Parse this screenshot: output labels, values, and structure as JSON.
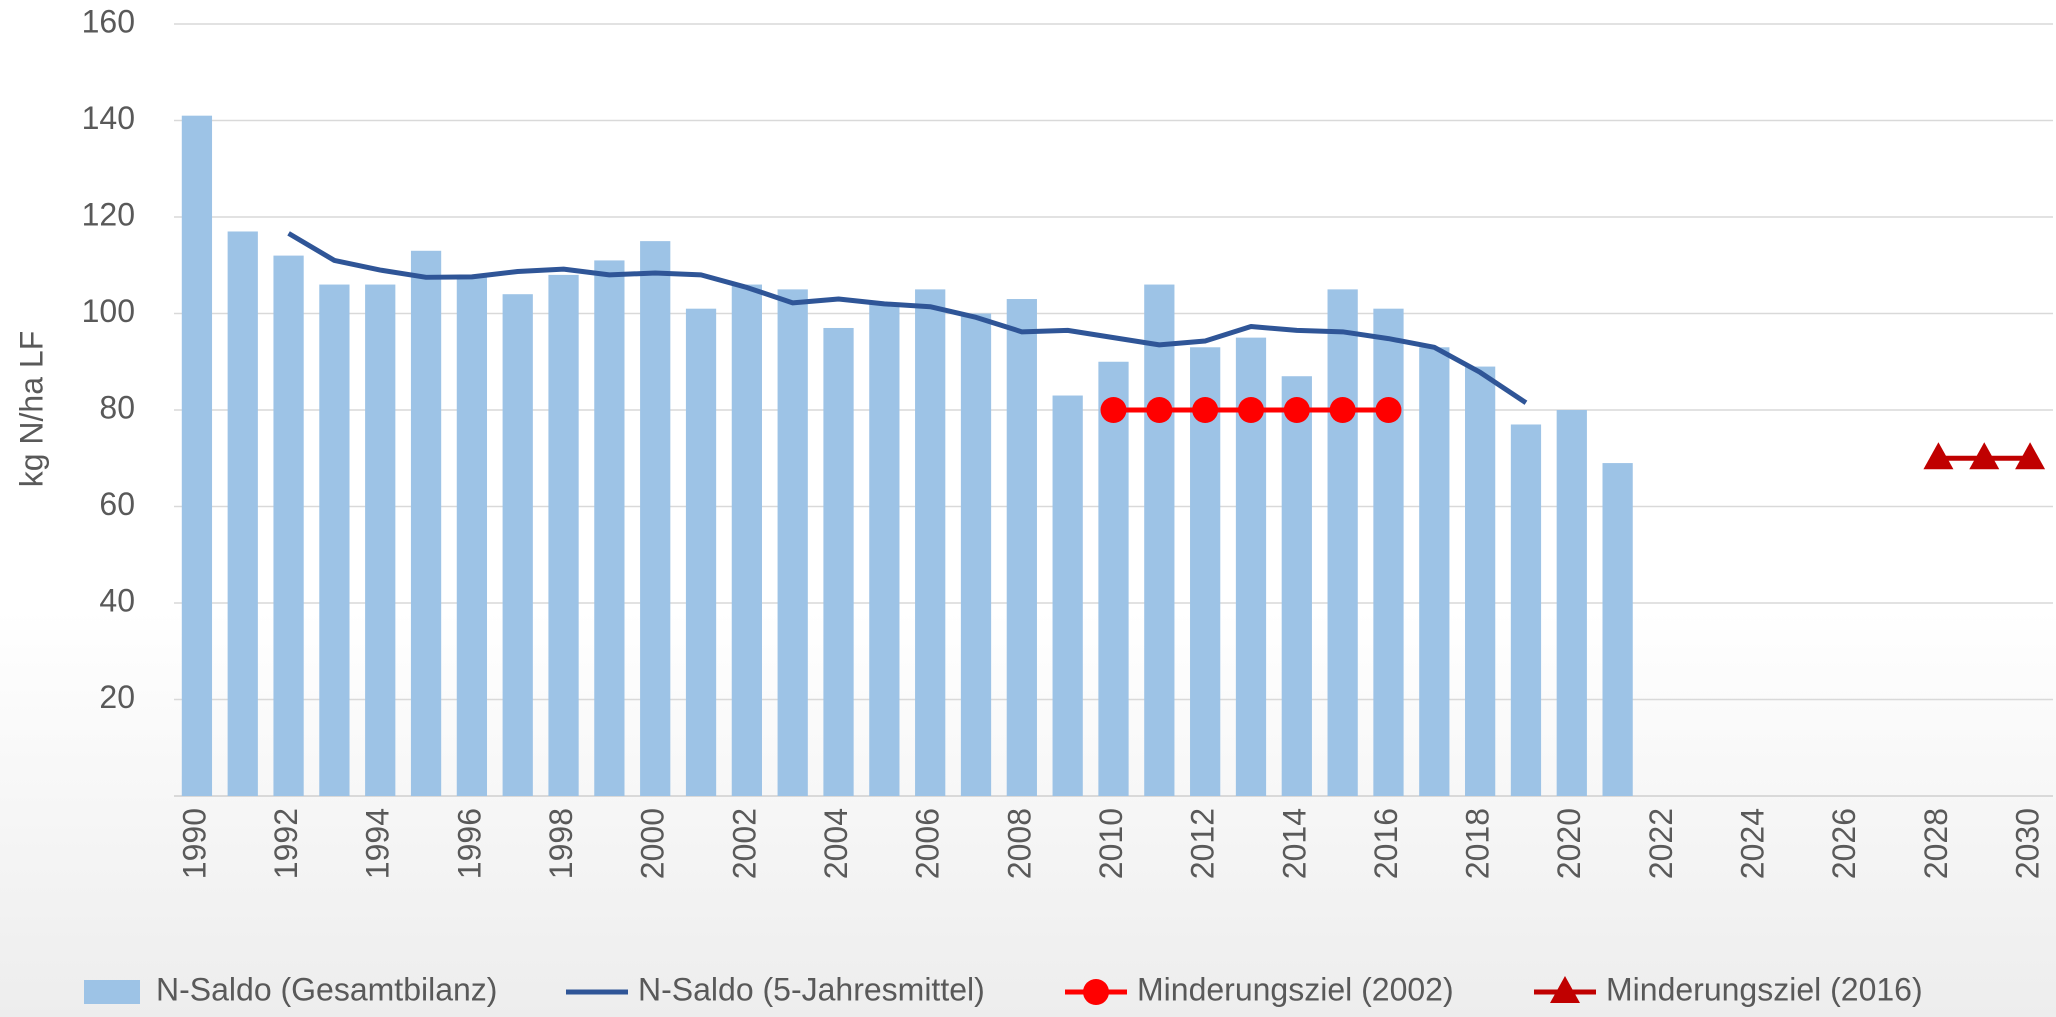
{
  "chart_data": {
    "type": "bar",
    "ylabel": "kg N/ha LF",
    "categories": [
      "1990",
      null,
      "1992",
      null,
      "1994",
      null,
      "1996",
      null,
      "1998",
      null,
      "2000",
      null,
      "2002",
      null,
      "2004",
      null,
      "2006",
      null,
      "2008",
      null,
      "2010",
      null,
      "2012",
      null,
      "2014",
      null,
      "2016",
      null,
      "2018",
      null,
      "2020",
      null,
      "2022",
      null,
      "2024",
      null,
      "2026",
      null,
      "2028",
      null,
      "2030"
    ],
    "series": [
      {
        "name": "N-Saldo (Gesamtbilanz)",
        "type": "bar",
        "color": "#9dc3e6",
        "values": [
          141,
          117,
          112,
          106,
          106,
          113,
          108,
          104,
          108,
          111,
          115,
          101,
          106,
          105,
          97,
          102,
          105,
          100,
          103,
          83,
          90,
          106,
          93,
          95,
          87,
          105,
          101,
          93,
          89,
          77,
          80,
          69,
          null,
          null,
          null,
          null,
          null,
          null,
          null,
          null,
          null
        ]
      },
      {
        "name": "N-Saldo (5-Jahresmittel)",
        "type": "line",
        "color": "#2f5597",
        "values": [
          null,
          null,
          116.6,
          111,
          109,
          107.5,
          107.6,
          108.7,
          109.2,
          108,
          108.4,
          108,
          105.4,
          102.2,
          103,
          102,
          101.4,
          99.2,
          96.2,
          96.5,
          95,
          93.5,
          94.3,
          97.3,
          96.5,
          96.2,
          94.8,
          93,
          87.8,
          81.5,
          null,
          null,
          null,
          null,
          null,
          null,
          null,
          null,
          null,
          null,
          null
        ]
      },
      {
        "name": "Minderungsziel (2002)",
        "type": "line",
        "marker": "circle",
        "color": "#ff0000",
        "values": [
          null,
          null,
          null,
          null,
          null,
          null,
          null,
          null,
          null,
          null,
          null,
          null,
          null,
          null,
          null,
          null,
          null,
          null,
          null,
          null,
          80,
          80,
          80,
          80,
          80,
          80,
          80,
          null,
          null,
          null,
          null,
          null,
          null,
          null,
          null,
          null,
          null,
          null,
          null,
          null,
          null
        ]
      },
      {
        "name": "Minderungsziel (2016)",
        "type": "line",
        "marker": "triangle",
        "color": "#c00000",
        "values": [
          null,
          null,
          null,
          null,
          null,
          null,
          null,
          null,
          null,
          null,
          null,
          null,
          null,
          null,
          null,
          null,
          null,
          null,
          null,
          null,
          null,
          null,
          null,
          null,
          null,
          null,
          null,
          null,
          null,
          null,
          null,
          null,
          null,
          null,
          null,
          null,
          null,
          null,
          70,
          70,
          70
        ]
      }
    ],
    "ylim": [
      0,
      160
    ],
    "yticks": [
      20,
      40,
      60,
      80,
      100,
      120,
      140,
      160
    ],
    "grid": true,
    "legend": "bottom"
  }
}
